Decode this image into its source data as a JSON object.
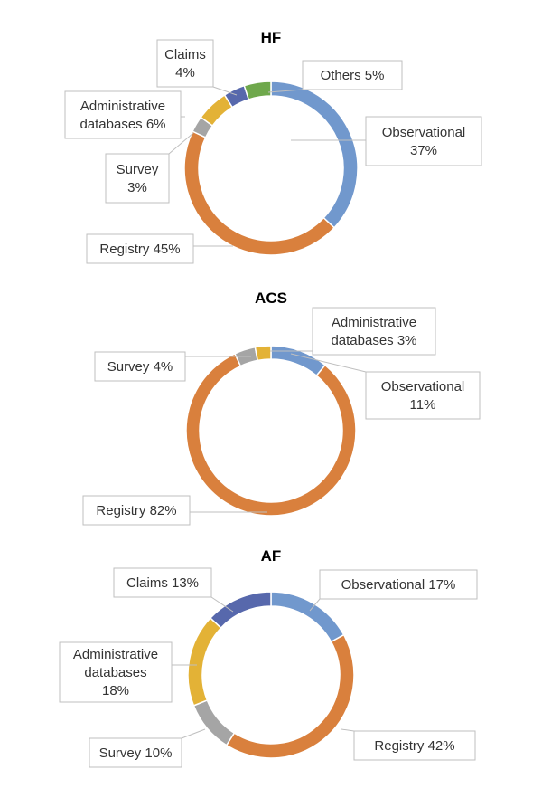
{
  "colors": {
    "Observational": "#7198cd",
    "Registry": "#d9803d",
    "Survey": "#a5a5a5",
    "Administrative databases": "#e3b236",
    "Claims": "#5768ac",
    "Others": "#6fa84c"
  },
  "chart_data": [
    {
      "type": "pie",
      "donut": true,
      "title": "HF",
      "slices": [
        {
          "name": "Observational",
          "value": 37,
          "label_lines": [
            "Observational",
            "37%"
          ]
        },
        {
          "name": "Registry",
          "value": 45,
          "label_lines": [
            "Registry 45%"
          ]
        },
        {
          "name": "Survey",
          "value": 3,
          "label_lines": [
            "Survey",
            "3%"
          ]
        },
        {
          "name": "Administrative databases",
          "value": 6,
          "label_lines": [
            "Administrative",
            "databases 6%"
          ]
        },
        {
          "name": "Claims",
          "value": 4,
          "label_lines": [
            "Claims",
            "4%"
          ]
        },
        {
          "name": "Others",
          "value": 5,
          "label_lines": [
            "Others 5%"
          ]
        }
      ]
    },
    {
      "type": "pie",
      "donut": true,
      "title": "ACS",
      "slices": [
        {
          "name": "Observational",
          "value": 11,
          "label_lines": [
            "Observational",
            "11%"
          ]
        },
        {
          "name": "Registry",
          "value": 82,
          "label_lines": [
            "Registry 82%"
          ]
        },
        {
          "name": "Survey",
          "value": 4,
          "label_lines": [
            "Survey 4%"
          ]
        },
        {
          "name": "Administrative databases",
          "value": 3,
          "label_lines": [
            "Administrative",
            "databases 3%"
          ]
        }
      ]
    },
    {
      "type": "pie",
      "donut": true,
      "title": "AF",
      "slices": [
        {
          "name": "Observational",
          "value": 17,
          "label_lines": [
            "Observational 17%"
          ]
        },
        {
          "name": "Registry",
          "value": 42,
          "label_lines": [
            "Registry 42%"
          ]
        },
        {
          "name": "Survey",
          "value": 10,
          "label_lines": [
            "Survey 10%"
          ]
        },
        {
          "name": "Administrative databases",
          "value": 18,
          "label_lines": [
            "Administrative",
            "databases",
            "18%"
          ]
        },
        {
          "name": "Claims",
          "value": 13,
          "label_lines": [
            "Claims 13%"
          ]
        }
      ]
    }
  ]
}
